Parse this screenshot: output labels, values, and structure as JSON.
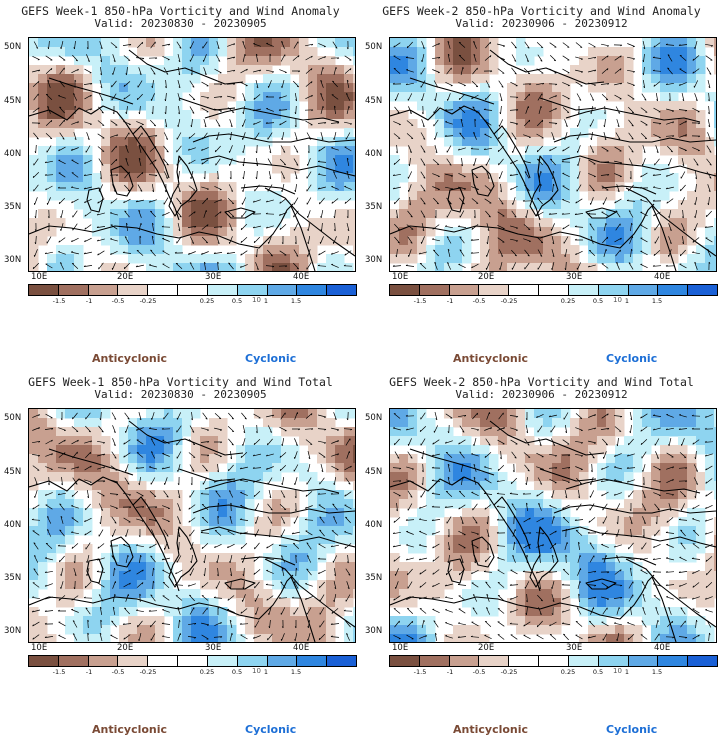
{
  "map_data": {
    "lat_labels": [
      "50N",
      "45N",
      "40N",
      "35N",
      "30N"
    ],
    "lon_labels": [
      "10E",
      "20E",
      "30E",
      "40E"
    ],
    "colorbar": {
      "colors": [
        "#7a5040",
        "#a07060",
        "#c8a090",
        "#e8d3c8",
        "#ffffff",
        "#ffffff",
        "#c8f0f8",
        "#8ed4f0",
        "#5fa9e6",
        "#2f86e0",
        "#1a60d6"
      ],
      "tick_labels": [
        "-1.5",
        "-1",
        "-0.5",
        "-0.25",
        "0.25",
        "0.5",
        "1",
        "1.5"
      ],
      "scale": "10"
    },
    "legend": {
      "anticyclonic": "Anticyclonic",
      "cyclonic": "Cyclonic"
    }
  },
  "panels": [
    {
      "title": "GEFS Week-1 850-hPa Vorticity and Wind Anomaly",
      "valid": "Valid: 20230830 - 20230905"
    },
    {
      "title": "GEFS Week-2 850-hPa Vorticity and Wind Anomaly",
      "valid": "Valid: 20230906 - 20230912"
    },
    {
      "title": "GEFS Week-1 850-hPa Vorticity and Wind Total",
      "valid": "Valid: 20230830 - 20230905"
    },
    {
      "title": "GEFS Week-2 850-hPa Vorticity and Wind Total",
      "valid": "Valid: 20230906 - 20230912"
    }
  ]
}
